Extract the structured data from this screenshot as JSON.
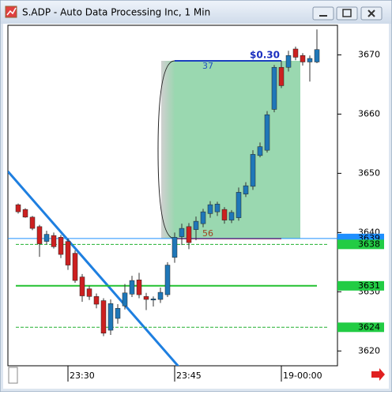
{
  "chart_data": {
    "type": "candlestick",
    "title": "S.ADP - Auto Data Processing Inc, 1 Min",
    "categories": [
      null,
      null,
      null,
      null,
      null,
      null,
      null,
      "23:30",
      null,
      null,
      null,
      null,
      null,
      null,
      null,
      null,
      null,
      null,
      null,
      null,
      null,
      null,
      "23:45",
      null,
      null,
      null,
      null,
      null,
      null,
      null,
      null,
      null,
      null,
      null,
      null,
      null,
      null,
      "19-00:00",
      null,
      null,
      null,
      null,
      null
    ],
    "open": [
      3644.7,
      3643.9,
      3642.6,
      3641,
      3638.5,
      3639.5,
      3639.2,
      3638.5,
      3636.5,
      3632.5,
      3630.5,
      3629.2,
      3628.5,
      3623.5,
      3625.5,
      3627.6,
      3629.6,
      3632,
      3629.2,
      3628.6,
      3628.7,
      3629.5,
      3635.8,
      3639.3,
      3641,
      3640.5,
      3641.5,
      3643.2,
      3643.5,
      3643.9,
      3642.1,
      3642.5,
      3646.5,
      3647.8,
      3653,
      3653.9,
      3660.8,
      3667.9,
      3667.9,
      3671,
      3669.9,
      3668.8,
      3668.8
    ],
    "high": [
      3644.9,
      3644.1,
      3642.8,
      3641.3,
      3640.3,
      3640,
      3639.6,
      3639,
      3637,
      3633,
      3631,
      3629.7,
      3628.9,
      3628.7,
      3627.9,
      3631.3,
      3632.7,
      3633.2,
      3629.8,
      3629.2,
      3630.7,
      3635,
      3640,
      3641.5,
      3641.6,
      3642.7,
      3644,
      3645.3,
      3645.2,
      3644.3,
      3643.8,
      3647.6,
      3648.5,
      3653.9,
      3655.2,
      3660.5,
      3668.3,
      3669,
      3670.7,
      3671.4,
      3670.3,
      3669.9,
      3674.3
    ],
    "low": [
      3643.2,
      3642.5,
      3640.4,
      3635.9,
      3638,
      3637.3,
      3635.7,
      3633.7,
      3631.5,
      3628.3,
      3628.6,
      3627.2,
      3622.5,
      3622.7,
      3624.6,
      3627,
      3629.1,
      3628.9,
      3626.9,
      3627.5,
      3628.1,
      3629.1,
      3634.9,
      3637.9,
      3637.2,
      3638.7,
      3640.9,
      3642.5,
      3642.8,
      3641.5,
      3641.6,
      3642,
      3646,
      3647.2,
      3652.7,
      3653.5,
      3660.3,
      3664.4,
      3667.2,
      3669.1,
      3668.2,
      3665.5,
      3668.6
    ],
    "close": [
      3643.5,
      3642.6,
      3640.7,
      3638.1,
      3639.7,
      3637.6,
      3636.3,
      3634.5,
      3631.9,
      3629.3,
      3629.2,
      3627.9,
      3623,
      3628,
      3627.2,
      3629.8,
      3631.9,
      3629.5,
      3628.7,
      3628.8,
      3629.9,
      3634.5,
      3639.2,
      3640.7,
      3638.3,
      3641.9,
      3643.5,
      3644.7,
      3644.8,
      3642.1,
      3643.4,
      3646.8,
      3647.9,
      3653.2,
      3654.5,
      3659.9,
      3667.9,
      3664.8,
      3669.9,
      3669.6,
      3668.8,
      3669.4,
      3670.9
    ],
    "up_color": "#1f77b8",
    "down_color": "#cc2020",
    "ylim": [
      3617.5,
      3675
    ],
    "yticks": [
      3620,
      3630,
      3640,
      3650,
      3660,
      3670
    ],
    "levels": [
      {
        "value": 3639,
        "color": "#1e8fff",
        "style": "solid"
      },
      {
        "value": 3638,
        "color": "#22b030",
        "style": "dashed"
      },
      {
        "value": 3631,
        "color": "#22c030",
        "style": "solid"
      },
      {
        "value": 3624,
        "color": "#22b030",
        "style": "dashed"
      }
    ],
    "annotations": {
      "top": "37",
      "bottom": "56",
      "change": "$0.30"
    }
  }
}
